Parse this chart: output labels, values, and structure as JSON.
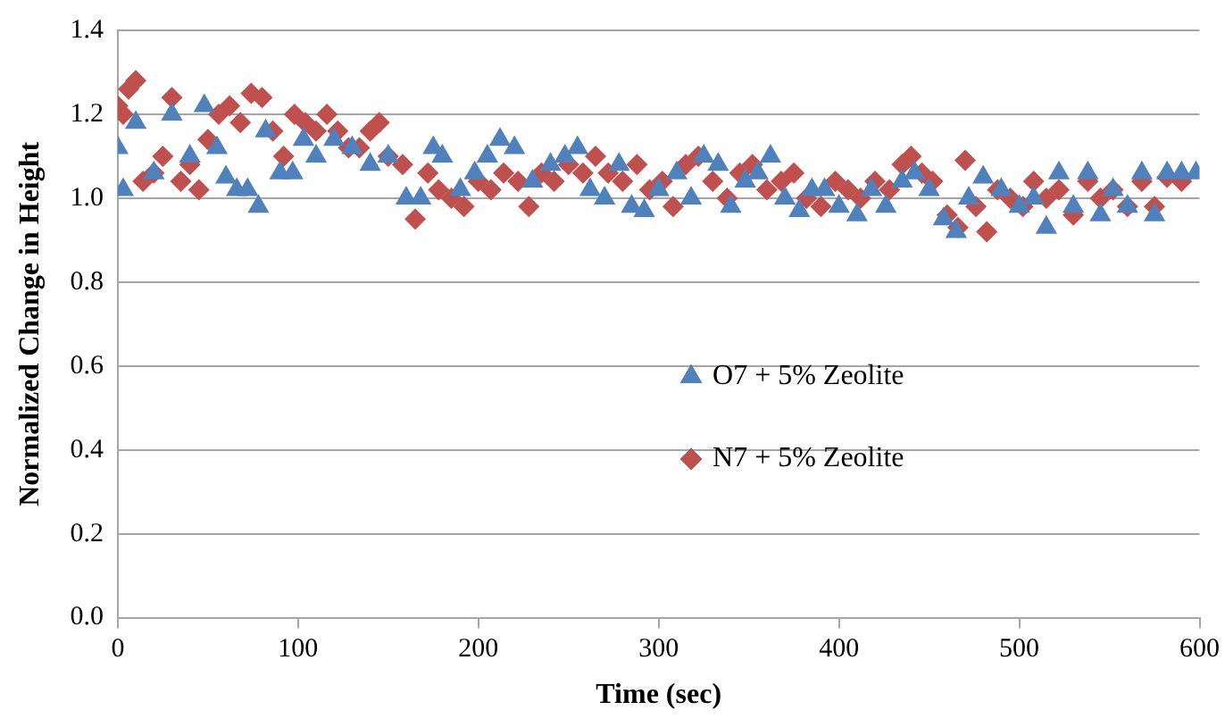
{
  "chart_data": {
    "type": "scatter",
    "xlabel": "Time (sec)",
    "ylabel": "Normalized Change in Height",
    "xlim": [
      0,
      600
    ],
    "xticks": [
      0,
      100,
      200,
      300,
      400,
      500,
      600
    ],
    "ylim": [
      0,
      1.4
    ],
    "yticks": [
      {
        "value": 0,
        "label": "0.0"
      },
      {
        "value": 0.2,
        "label": "0.2"
      },
      {
        "value": 0.4,
        "label": "0.4"
      },
      {
        "value": 0.6,
        "label": "0.6"
      },
      {
        "value": 0.8,
        "label": "0.8"
      },
      {
        "value": 1,
        "label": "1.0"
      },
      {
        "value": 1.2,
        "label": "1.2"
      },
      {
        "value": 1.4,
        "label": "1.4"
      }
    ],
    "grid": "y",
    "legend": "right",
    "series": [
      {
        "name": "O7 + 5% Zeolite",
        "color": "#4f81bd",
        "marker": "triangle",
        "x": [
          0,
          3,
          10,
          20,
          30,
          40,
          48,
          55,
          60,
          66,
          72,
          78,
          82,
          90,
          97,
          103,
          110,
          120,
          130,
          140,
          150,
          160,
          168,
          175,
          180,
          190,
          198,
          205,
          212,
          220,
          230,
          240,
          248,
          255,
          262,
          270,
          278,
          285,
          292,
          300,
          310,
          318,
          325,
          333,
          340,
          348,
          355,
          362,
          370,
          378,
          385,
          392,
          400,
          410,
          418,
          426,
          435,
          442,
          450,
          458,
          465,
          472,
          480,
          490,
          500,
          508,
          515,
          522,
          530,
          538,
          545,
          552,
          560,
          568,
          575,
          582,
          590,
          598
        ],
        "values": [
          1.12,
          1.02,
          1.18,
          1.06,
          1.2,
          1.1,
          1.22,
          1.12,
          1.05,
          1.02,
          1.02,
          0.98,
          1.16,
          1.06,
          1.06,
          1.14,
          1.1,
          1.14,
          1.12,
          1.08,
          1.1,
          1,
          1,
          1.12,
          1.1,
          1.02,
          1.06,
          1.1,
          1.14,
          1.12,
          1.04,
          1.08,
          1.1,
          1.12,
          1.02,
          1,
          1.08,
          0.98,
          0.97,
          1.02,
          1.06,
          1,
          1.1,
          1.08,
          0.98,
          1.04,
          1.06,
          1.1,
          1,
          0.97,
          1.02,
          1.02,
          0.98,
          0.96,
          1.02,
          0.98,
          1.04,
          1.06,
          1.02,
          0.95,
          0.92,
          1,
          1.05,
          1.02,
          0.98,
          1,
          0.93,
          1.06,
          0.98,
          1.06,
          0.96,
          1.02,
          0.98,
          1.06,
          0.96,
          1.06,
          1.06,
          1.06
        ]
      },
      {
        "name": "N7 + 5% Zeolite",
        "color": "#c0504d",
        "marker": "diamond",
        "x": [
          0,
          3,
          6,
          10,
          14,
          20,
          25,
          30,
          35,
          40,
          45,
          50,
          56,
          62,
          68,
          74,
          80,
          86,
          92,
          98,
          104,
          110,
          116,
          122,
          128,
          134,
          140,
          145,
          150,
          158,
          165,
          172,
          178,
          185,
          192,
          200,
          207,
          214,
          222,
          228,
          235,
          242,
          250,
          258,
          265,
          272,
          280,
          288,
          295,
          302,
          308,
          315,
          322,
          330,
          338,
          345,
          352,
          360,
          368,
          375,
          382,
          390,
          398,
          405,
          412,
          420,
          428,
          435,
          440,
          446,
          452,
          460,
          466,
          470,
          476,
          482,
          488,
          495,
          502,
          508,
          515,
          522,
          530,
          538,
          545,
          552,
          560,
          568,
          575,
          582,
          590
        ],
        "values": [
          1.22,
          1.2,
          1.26,
          1.28,
          1.04,
          1.06,
          1.1,
          1.24,
          1.04,
          1.08,
          1.02,
          1.14,
          1.2,
          1.22,
          1.18,
          1.25,
          1.24,
          1.16,
          1.1,
          1.2,
          1.18,
          1.16,
          1.2,
          1.16,
          1.12,
          1.12,
          1.16,
          1.18,
          1.1,
          1.08,
          0.95,
          1.06,
          1.02,
          1,
          0.98,
          1.04,
          1.02,
          1.06,
          1.04,
          0.98,
          1.06,
          1.04,
          1.08,
          1.06,
          1.1,
          1.06,
          1.04,
          1.08,
          1.02,
          1.04,
          0.98,
          1.08,
          1.1,
          1.04,
          1,
          1.06,
          1.08,
          1.02,
          1.04,
          1.06,
          1,
          0.98,
          1.04,
          1.02,
          1,
          1.04,
          1.02,
          1.08,
          1.1,
          1.06,
          1.04,
          0.96,
          0.93,
          1.09,
          0.98,
          0.92,
          1.02,
          1,
          0.98,
          1.04,
          1,
          1.02,
          0.96,
          1.04,
          1,
          1.02,
          0.98,
          1.04,
          0.98,
          1.05,
          1.04
        ]
      }
    ]
  }
}
